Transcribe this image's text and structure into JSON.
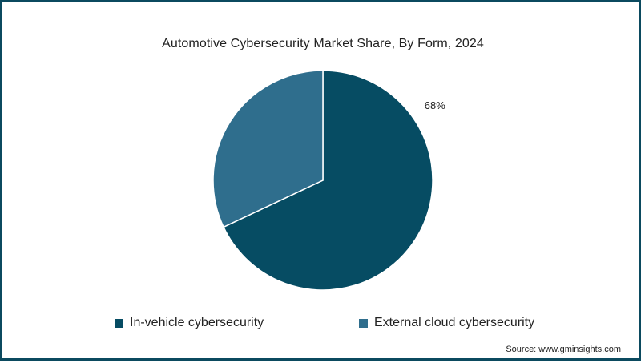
{
  "chart_data": {
    "type": "pie",
    "title": "Automotive Cybersecurity Market Share, By Form, 2024",
    "series": [
      {
        "name": "In-vehicle cybersecurity",
        "value": 68,
        "label": "68%",
        "color": "#064c63"
      },
      {
        "name": "External cloud cybersecurity",
        "value": 32,
        "label": "",
        "color": "#2f6e8d"
      }
    ],
    "legend_position": "bottom"
  },
  "source": "Source: www.gminsights.com",
  "colors": {
    "border": "#0b4a5f",
    "text": "#222222",
    "slice_divider": "#ffffff"
  }
}
